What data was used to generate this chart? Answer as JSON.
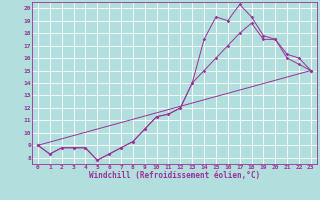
{
  "xlabel": "Windchill (Refroidissement éolien,°C)",
  "bg_color": "#b2dede",
  "grid_color": "#ffffff",
  "line_color": "#993399",
  "xlim": [
    -0.5,
    23.5
  ],
  "ylim": [
    7.5,
    20.5
  ],
  "xticks": [
    0,
    1,
    2,
    3,
    4,
    5,
    6,
    7,
    8,
    9,
    10,
    11,
    12,
    13,
    14,
    15,
    16,
    17,
    18,
    19,
    20,
    21,
    22,
    23
  ],
  "yticks": [
    8,
    9,
    10,
    11,
    12,
    13,
    14,
    15,
    16,
    17,
    18,
    19,
    20
  ],
  "line1_x": [
    0,
    1,
    2,
    3,
    4,
    5,
    6,
    7,
    8,
    9,
    10,
    11,
    12,
    13,
    14,
    15,
    16,
    17,
    18,
    19,
    20,
    21,
    22,
    23
  ],
  "line1_y": [
    9.0,
    8.3,
    8.8,
    8.8,
    8.8,
    7.8,
    8.3,
    8.8,
    9.3,
    10.3,
    11.3,
    11.5,
    12.0,
    14.0,
    17.5,
    19.3,
    19.0,
    20.3,
    19.3,
    17.8,
    17.5,
    16.3,
    16.0,
    15.0
  ],
  "line2_x": [
    0,
    1,
    2,
    3,
    4,
    5,
    6,
    7,
    8,
    9,
    10,
    11,
    12,
    13,
    14,
    15,
    16,
    17,
    18,
    19,
    20,
    21,
    22,
    23
  ],
  "line2_y": [
    9.0,
    8.3,
    8.8,
    8.8,
    8.8,
    7.8,
    8.3,
    8.8,
    9.3,
    10.3,
    11.3,
    11.5,
    12.0,
    14.0,
    15.0,
    16.0,
    17.0,
    18.0,
    18.8,
    17.5,
    17.5,
    16.0,
    15.5,
    15.0
  ],
  "line3_x": [
    0,
    23
  ],
  "line3_y": [
    9.0,
    15.0
  ],
  "tick_fontsize": 4.5,
  "xlabel_fontsize": 5.5,
  "marker_size": 1.8,
  "line_width": 0.7
}
